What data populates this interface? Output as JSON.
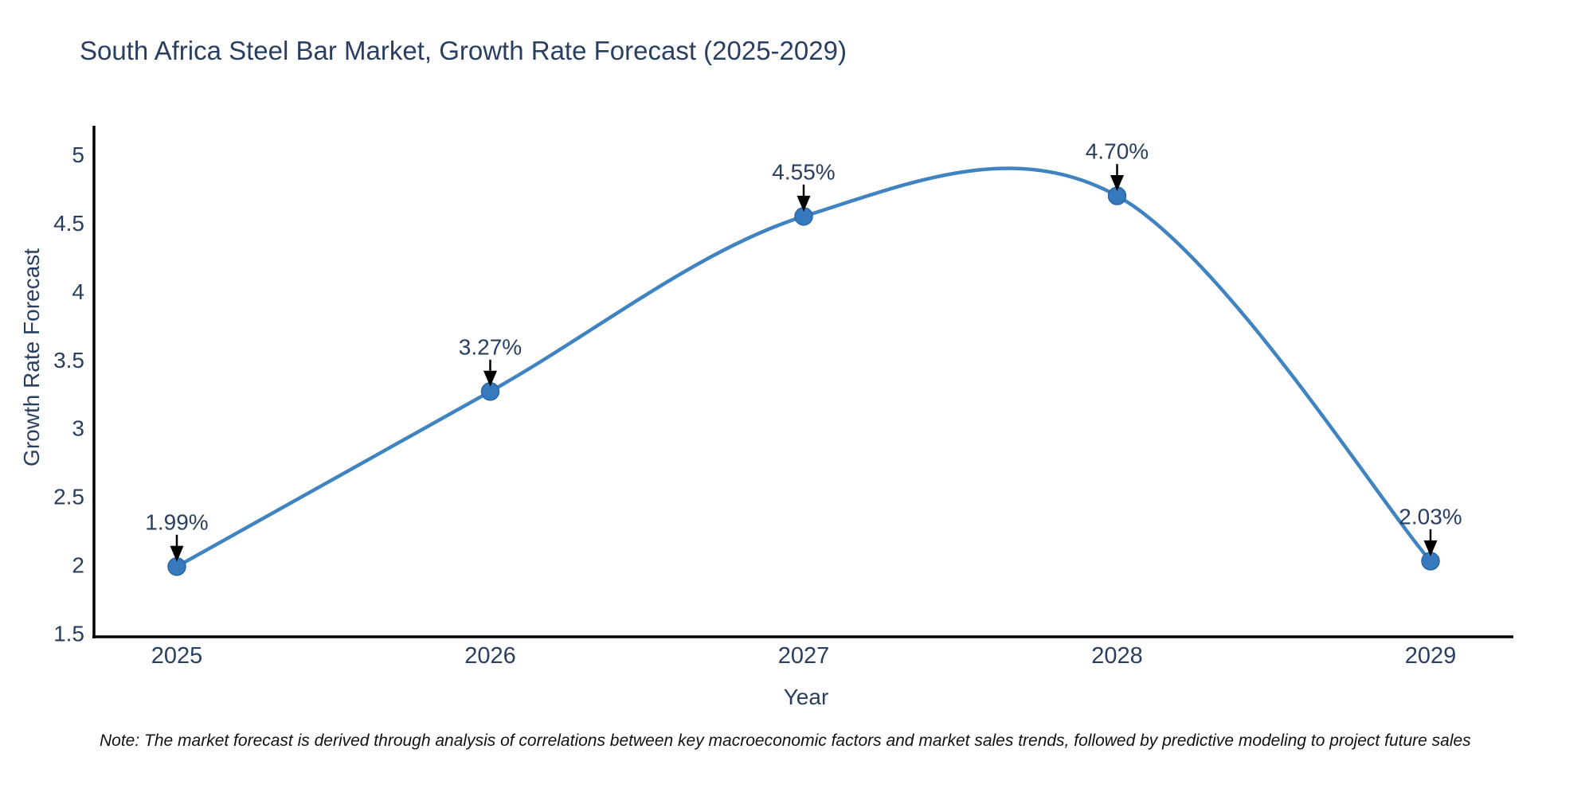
{
  "chart_data": {
    "type": "line",
    "title": "South Africa Steel Bar Market, Growth Rate Forecast (2025-2029)",
    "xlabel": "Year",
    "ylabel": "Growth Rate Forecast",
    "categories": [
      "2025",
      "2026",
      "2027",
      "2028",
      "2029"
    ],
    "values": [
      1.99,
      3.27,
      4.55,
      4.7,
      2.03
    ],
    "point_labels": [
      "1.99%",
      "3.27%",
      "4.55%",
      "4.70%",
      "2.03%"
    ],
    "y_ticks": [
      "1.5",
      "2",
      "2.5",
      "3",
      "3.5",
      "4",
      "4.5",
      "5"
    ],
    "ylim": [
      1.5,
      5.2
    ],
    "curve": "spline",
    "grid": false,
    "legend": "none",
    "line_color": "#3f83c0",
    "marker_color": "#3779bd",
    "marker_edge_color": "#2b66a3",
    "annotation_arrow_color": "#000000",
    "axis_color": "#000000",
    "text_color": "#2a3f5f"
  },
  "note": "Note: The market forecast is derived through analysis of correlations between key macroeconomic factors and market sales trends, followed by predictive modeling to project future sales"
}
